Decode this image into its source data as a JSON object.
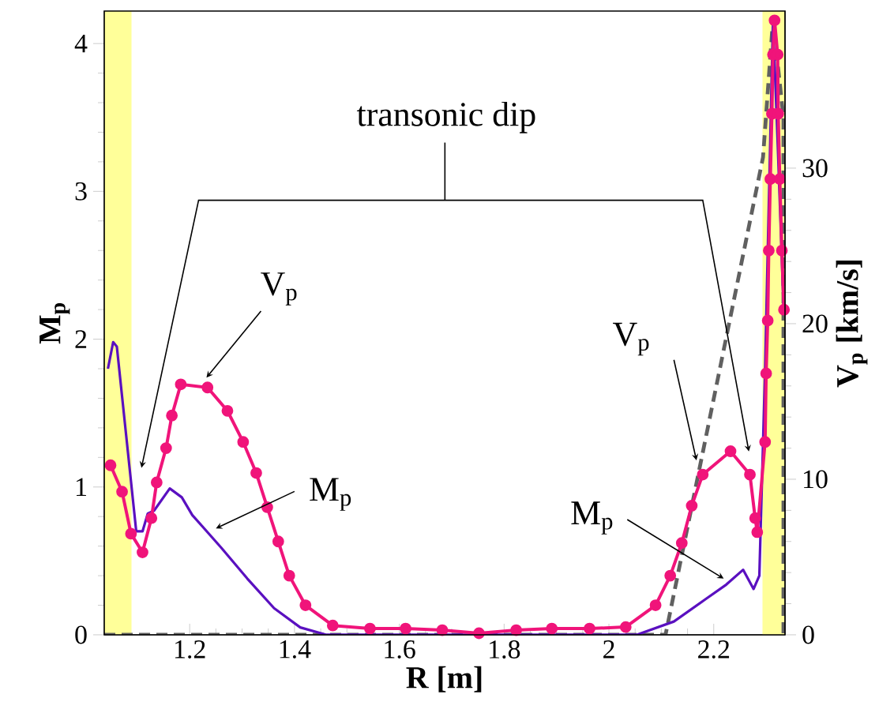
{
  "chart_data": {
    "type": "line",
    "xlabel": "R [m]",
    "ylabel": "M$_{p}$",
    "y2label": "V$_{p}$ [km/s]",
    "xlim": [
      1.037,
      2.336
    ],
    "ylim": [
      0,
      4.22
    ],
    "y2lim": [
      0,
      40.1
    ],
    "xticks": [
      1.2,
      1.4,
      1.6,
      1.8,
      2,
      2.2
    ],
    "yticks": [
      0,
      1,
      2,
      3,
      4
    ],
    "y2ticks": [
      0,
      10,
      20,
      30
    ],
    "series": [
      {
        "type": "line",
        "axis": "y",
        "color": "#606060",
        "line_style": "dashed",
        "marker": "none",
        "x": [
          1.037,
          2.108,
          2.294,
          2.313,
          2.333,
          2.333
        ],
        "values": [
          0,
          0,
          3.23,
          4.16,
          3.5,
          0
        ]
      },
      {
        "type": "line",
        "axis": "y",
        "color": "#5a10c0",
        "line_style": "solid",
        "marker": "none",
        "x": [
          1.044,
          1.054,
          1.061,
          1.098,
          1.11,
          1.12,
          1.132,
          1.162,
          1.185,
          1.205,
          1.26,
          1.31,
          1.361,
          1.411,
          1.461,
          2.053,
          2.124,
          2.184,
          2.224,
          2.256,
          2.276,
          2.287,
          2.298,
          2.313,
          2.323,
          2.333
        ],
        "values": [
          1.8,
          1.98,
          1.95,
          0.7,
          0.7,
          0.82,
          0.84,
          0.99,
          0.93,
          0.81,
          0.59,
          0.38,
          0.18,
          0.05,
          0,
          0,
          0.09,
          0.24,
          0.34,
          0.44,
          0.31,
          0.4,
          1.8,
          4.16,
          3.23,
          2.23
        ]
      },
      {
        "type": "line",
        "axis": "y2",
        "color": "#f0147a",
        "line_style": "solid",
        "marker": "circle",
        "x": [
          1.049,
          1.071,
          1.088,
          1.11,
          1.127,
          1.137,
          1.155,
          1.166,
          1.183,
          1.234,
          1.272,
          1.302,
          1.327,
          1.348,
          1.369,
          1.39,
          1.421,
          1.473,
          1.544,
          1.612,
          1.682,
          1.752,
          1.823,
          1.891,
          1.963,
          2.032,
          2.089,
          2.117,
          2.139,
          2.158,
          2.179,
          2.232,
          2.269,
          2.279,
          2.283,
          2.298,
          2.3,
          2.303,
          2.305,
          2.308,
          2.311,
          2.313,
          2.316,
          2.322,
          2.323,
          2.326,
          2.33,
          2.334
        ],
        "values": [
          10.9,
          9.2,
          6.5,
          5.3,
          7.5,
          9.8,
          12,
          14.1,
          16.1,
          15.9,
          14.4,
          12.4,
          10.4,
          8.2,
          6,
          3.8,
          1.9,
          0.6,
          0.4,
          0.4,
          0.3,
          0.1,
          0.3,
          0.4,
          0.4,
          0.5,
          1.9,
          3.8,
          5.9,
          8.3,
          10.3,
          11.8,
          10.3,
          7.5,
          6.6,
          12.4,
          16.8,
          20.2,
          24.7,
          29.3,
          33.5,
          37.3,
          39.5,
          37.3,
          33.5,
          29.3,
          24.7,
          20.9
        ]
      }
    ],
    "bands": [
      {
        "axis": "x",
        "from": 1.037,
        "to": 1.089,
        "color": "#ffff99"
      },
      {
        "axis": "x",
        "from": 2.293,
        "to": 2.336,
        "color": "#ffff99"
      }
    ],
    "annotations": [
      "transonic dip",
      {
        "text": "V$_{p}$",
        "x": 1.232,
        "y": 1.74
      },
      {
        "text": "M$_{p}$",
        "x": 1.25,
        "y": 0.72
      },
      {
        "text": "V$_{p}$",
        "x": 2.167,
        "y": 1.18
      },
      {
        "text": "M$_{p}$",
        "x": 2.219,
        "y": 0.38
      }
    ]
  }
}
